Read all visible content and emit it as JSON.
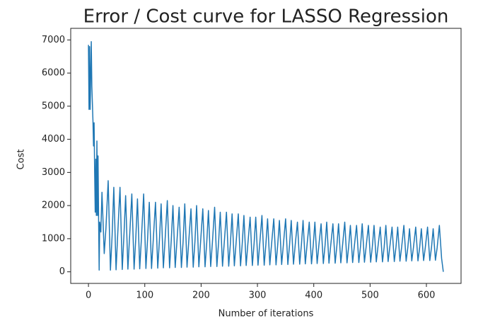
{
  "chart_data": {
    "type": "line",
    "title": "Error / Cost curve for LASSO Regression",
    "x_label": "Number of iterations",
    "y_label": "Cost",
    "xlim": [
      -31.5,
      661.5
    ],
    "ylim": [
      -350,
      7350
    ],
    "xticks": [
      0,
      100,
      200,
      300,
      400,
      500,
      600
    ],
    "yticks": [
      0,
      1000,
      2000,
      3000,
      4000,
      5000,
      6000,
      7000
    ],
    "grid": false,
    "series": [
      {
        "color": "#1f77b4",
        "x": [
          0,
          1,
          2,
          3,
          5,
          6,
          8,
          9,
          10,
          11,
          12,
          13,
          14,
          15,
          16,
          17,
          18,
          19,
          20,
          22,
          24,
          28,
          31,
          35,
          39,
          42,
          45,
          49,
          52,
          56,
          60,
          63,
          66,
          70,
          73,
          77,
          81,
          84,
          87,
          91,
          94,
          98,
          102,
          105,
          108,
          112,
          115,
          119,
          123,
          126,
          129,
          133,
          136,
          140,
          144,
          147,
          150,
          154,
          157,
          161,
          165,
          168,
          171,
          175,
          178,
          182,
          186,
          189,
          192,
          196,
          199,
          203,
          207,
          210,
          213,
          217,
          220,
          224,
          228,
          231,
          234,
          238,
          241,
          245,
          249,
          252,
          255,
          259,
          262,
          266,
          270,
          273,
          276,
          280,
          283,
          287,
          291,
          294,
          297,
          301,
          304,
          308,
          312,
          315,
          318,
          322,
          325,
          329,
          333,
          336,
          339,
          343,
          346,
          350,
          354,
          357,
          360,
          364,
          367,
          371,
          375,
          378,
          381,
          385,
          388,
          392,
          396,
          399,
          402,
          406,
          409,
          413,
          417,
          420,
          423,
          427,
          430,
          434,
          438,
          441,
          444,
          448,
          451,
          455,
          459,
          462,
          465,
          469,
          472,
          476,
          480,
          483,
          486,
          490,
          493,
          497,
          501,
          504,
          507,
          511,
          514,
          518,
          522,
          525,
          528,
          532,
          535,
          539,
          543,
          546,
          549,
          553,
          556,
          560,
          564,
          567,
          570,
          574,
          577,
          581,
          585,
          588,
          591,
          595,
          598,
          602,
          606,
          609,
          612,
          616,
          619,
          623,
          627,
          630
        ],
        "values": [
          6850,
          4900,
          6800,
          4900,
          6950,
          5600,
          4550,
          3800,
          4500,
          3000,
          1800,
          3400,
          1700,
          3950,
          1700,
          3500,
          1600,
          50,
          1500,
          1200,
          2400,
          550,
          1300,
          2750,
          50,
          1100,
          2550,
          60,
          1150,
          2550,
          70,
          1100,
          2300,
          80,
          1050,
          2350,
          80,
          1000,
          2200,
          90,
          1000,
          2350,
          100,
          1000,
          2100,
          100,
          950,
          2100,
          110,
          950,
          2050,
          120,
          950,
          2150,
          120,
          950,
          2000,
          130,
          900,
          1950,
          130,
          900,
          2050,
          140,
          900,
          1900,
          140,
          900,
          2000,
          150,
          880,
          1900,
          150,
          880,
          1850,
          160,
          870,
          1950,
          160,
          870,
          1800,
          170,
          860,
          1800,
          170,
          860,
          1750,
          180,
          850,
          1750,
          180,
          850,
          1700,
          190,
          840,
          1650,
          190,
          840,
          1650,
          200,
          830,
          1700,
          200,
          830,
          1600,
          210,
          820,
          1600,
          210,
          820,
          1550,
          220,
          810,
          1600,
          220,
          810,
          1550,
          230,
          800,
          1500,
          230,
          800,
          1550,
          240,
          800,
          1500,
          240,
          790,
          1500,
          250,
          790,
          1450,
          250,
          790,
          1500,
          260,
          780,
          1450,
          260,
          780,
          1450,
          270,
          780,
          1500,
          270,
          770,
          1400,
          280,
          770,
          1400,
          280,
          770,
          1450,
          290,
          760,
          1400,
          290,
          760,
          1400,
          300,
          760,
          1350,
          300,
          750,
          1400,
          310,
          750,
          1350,
          310,
          750,
          1350,
          320,
          740,
          1400,
          320,
          740,
          1300,
          330,
          740,
          1350,
          330,
          730,
          1300,
          340,
          730,
          1350,
          340,
          730,
          1300,
          350,
          720,
          1400,
          400,
          0
        ]
      }
    ]
  }
}
